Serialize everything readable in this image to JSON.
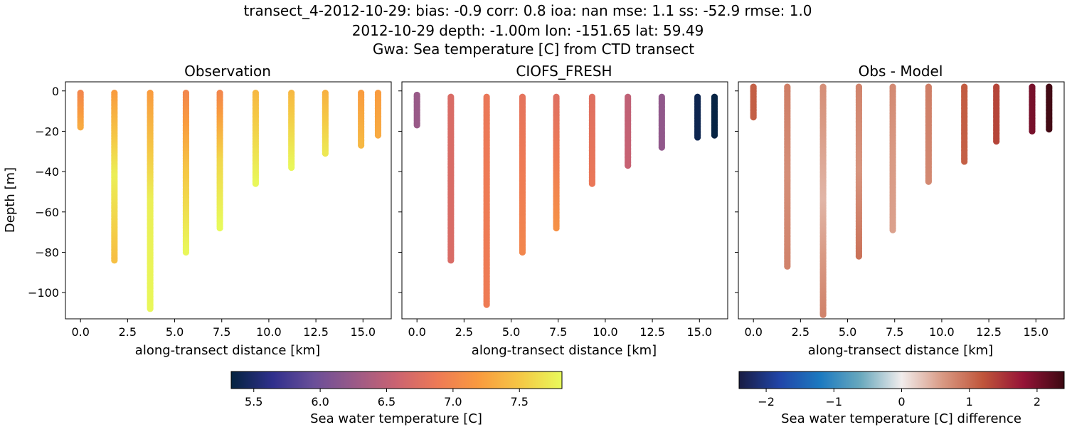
{
  "header": {
    "line1": "transect_4-2012-10-29: bias: -0.9  corr: 0.8  ioa: nan  mse: 1.1  ss: -52.9  rmse: 1.0",
    "line2": "2012-10-29 depth: -1.00m lon: -151.65 lat: 59.49",
    "line3": "Gwa: Sea temperature [C] from CTD transect"
  },
  "chart_data": [
    {
      "type": "scatter",
      "title": "Observation",
      "xlabel": "along-transect distance [km]",
      "ylabel": "Depth [m]",
      "xlim": [
        -0.8,
        16.5
      ],
      "ylim": [
        -113,
        4.5
      ],
      "xticks": [
        0.0,
        2.5,
        5.0,
        7.5,
        10.0,
        12.5,
        15.0
      ],
      "xtick_labels": [
        "0.0",
        "2.5",
        "5.0",
        "7.5",
        "10.0",
        "12.5",
        "15.0"
      ],
      "yticks": [
        0,
        -20,
        -40,
        -60,
        -80,
        -100
      ],
      "ytick_labels": [
        "0",
        "−20",
        "−40",
        "−60",
        "−80",
        "−100"
      ],
      "colormap": "thermal",
      "clim": [
        5.33,
        7.82
      ],
      "casts": [
        {
          "x": 0.0,
          "top": -1,
          "bottom": -18,
          "values": [
            7.0,
            7.3
          ]
        },
        {
          "x": 1.8,
          "top": -1,
          "bottom": -84,
          "values": [
            7.2,
            7.75,
            7.45
          ]
        },
        {
          "x": 3.7,
          "top": -1,
          "bottom": -108,
          "values": [
            7.2,
            7.75,
            7.8
          ]
        },
        {
          "x": 5.6,
          "top": -1,
          "bottom": -80,
          "values": [
            7.0,
            7.5,
            7.8
          ]
        },
        {
          "x": 7.4,
          "top": -1,
          "bottom": -68,
          "values": [
            7.0,
            7.6,
            7.82
          ]
        },
        {
          "x": 9.3,
          "top": -1,
          "bottom": -46,
          "values": [
            7.4,
            7.8
          ]
        },
        {
          "x": 11.2,
          "top": -1,
          "bottom": -38,
          "values": [
            7.4,
            7.8
          ]
        },
        {
          "x": 13.0,
          "top": -1,
          "bottom": -31,
          "values": [
            7.35,
            7.7
          ]
        },
        {
          "x": 14.9,
          "top": -1,
          "bottom": -27,
          "values": [
            7.2,
            7.4
          ]
        },
        {
          "x": 15.8,
          "top": -1,
          "bottom": -22,
          "values": [
            7.2,
            7.3
          ]
        }
      ]
    },
    {
      "type": "scatter",
      "title": "CIOFS_FRESH",
      "xlabel": "along-transect distance [km]",
      "xlim": [
        -0.8,
        16.5
      ],
      "ylim": [
        -113,
        4.5
      ],
      "xticks": [
        0.0,
        2.5,
        5.0,
        7.5,
        10.0,
        12.5,
        15.0
      ],
      "xtick_labels": [
        "0.0",
        "2.5",
        "5.0",
        "7.5",
        "10.0",
        "12.5",
        "15.0"
      ],
      "yticks": [
        0,
        -20,
        -40,
        -60,
        -80,
        -100
      ],
      "colormap": "thermal",
      "clim": [
        5.33,
        7.82
      ],
      "casts": [
        {
          "x": 0.0,
          "top": -2,
          "bottom": -17,
          "values": [
            6.25,
            6.25
          ]
        },
        {
          "x": 1.8,
          "top": -3,
          "bottom": -84,
          "values": [
            6.7,
            6.7
          ]
        },
        {
          "x": 3.7,
          "top": -3,
          "bottom": -106,
          "values": [
            6.85,
            6.9,
            6.9
          ]
        },
        {
          "x": 5.6,
          "top": -3,
          "bottom": -80,
          "values": [
            6.8,
            6.9,
            7.0
          ]
        },
        {
          "x": 7.4,
          "top": -3,
          "bottom": -68,
          "values": [
            6.75,
            6.9,
            7.1
          ]
        },
        {
          "x": 9.3,
          "top": -3,
          "bottom": -46,
          "values": [
            6.75,
            6.85
          ]
        },
        {
          "x": 11.2,
          "top": -3,
          "bottom": -37,
          "values": [
            6.5,
            6.55
          ]
        },
        {
          "x": 13.0,
          "top": -3,
          "bottom": -28,
          "values": [
            6.2,
            6.2
          ]
        },
        {
          "x": 14.9,
          "top": -3,
          "bottom": -23,
          "values": [
            5.4,
            5.4
          ]
        },
        {
          "x": 15.8,
          "top": -3,
          "bottom": -22,
          "values": [
            5.35,
            5.35
          ]
        }
      ]
    },
    {
      "type": "scatter",
      "title": "Obs - Model",
      "xlabel": "along-transect distance [km]",
      "xlim": [
        -0.8,
        16.5
      ],
      "ylim": [
        -113,
        4.5
      ],
      "xticks": [
        0.0,
        2.5,
        5.0,
        7.5,
        10.0,
        12.5,
        15.0
      ],
      "xtick_labels": [
        "0.0",
        "2.5",
        "5.0",
        "7.5",
        "10.0",
        "12.5",
        "15.0"
      ],
      "yticks": [
        0,
        -20,
        -40,
        -60,
        -80,
        -100
      ],
      "colormap": "balance",
      "clim": [
        -2.4,
        2.4
      ],
      "casts": [
        {
          "x": 0.0,
          "top": 2,
          "bottom": -13,
          "values": [
            1.1,
            1.1
          ]
        },
        {
          "x": 1.8,
          "top": 2,
          "bottom": -87,
          "values": [
            0.85,
            0.7,
            0.8
          ]
        },
        {
          "x": 3.7,
          "top": 2,
          "bottom": -111,
          "values": [
            0.7,
            0.4,
            0.8
          ]
        },
        {
          "x": 5.6,
          "top": 2,
          "bottom": -82,
          "values": [
            0.8,
            0.65,
            0.95
          ]
        },
        {
          "x": 7.4,
          "top": 2,
          "bottom": -69,
          "values": [
            0.75,
            0.6,
            0.55
          ]
        },
        {
          "x": 9.3,
          "top": 2,
          "bottom": -45,
          "values": [
            0.85,
            0.75
          ]
        },
        {
          "x": 11.2,
          "top": 2,
          "bottom": -35,
          "values": [
            1.15,
            1.1
          ]
        },
        {
          "x": 12.9,
          "top": 2,
          "bottom": -25,
          "values": [
            1.35,
            1.35
          ]
        },
        {
          "x": 14.8,
          "top": 2,
          "bottom": -20,
          "values": [
            2.0,
            2.0
          ]
        },
        {
          "x": 15.7,
          "top": 2,
          "bottom": -19,
          "values": [
            2.35,
            2.35
          ]
        }
      ]
    }
  ],
  "colorbars": [
    {
      "label": "Sea water temperature [C]",
      "colormap": "thermal",
      "range": [
        5.33,
        7.82
      ],
      "ticks": [
        5.5,
        6.0,
        6.5,
        7.0,
        7.5
      ],
      "tick_labels": [
        "5.5",
        "6.0",
        "6.5",
        "7.0",
        "7.5"
      ]
    },
    {
      "label": "Sea water temperature [C] difference",
      "colormap": "balance",
      "range": [
        -2.4,
        2.4
      ],
      "ticks": [
        -2,
        -1,
        0,
        1,
        2
      ],
      "tick_labels": [
        "−2",
        "−1",
        "0",
        "1",
        "2"
      ]
    }
  ]
}
